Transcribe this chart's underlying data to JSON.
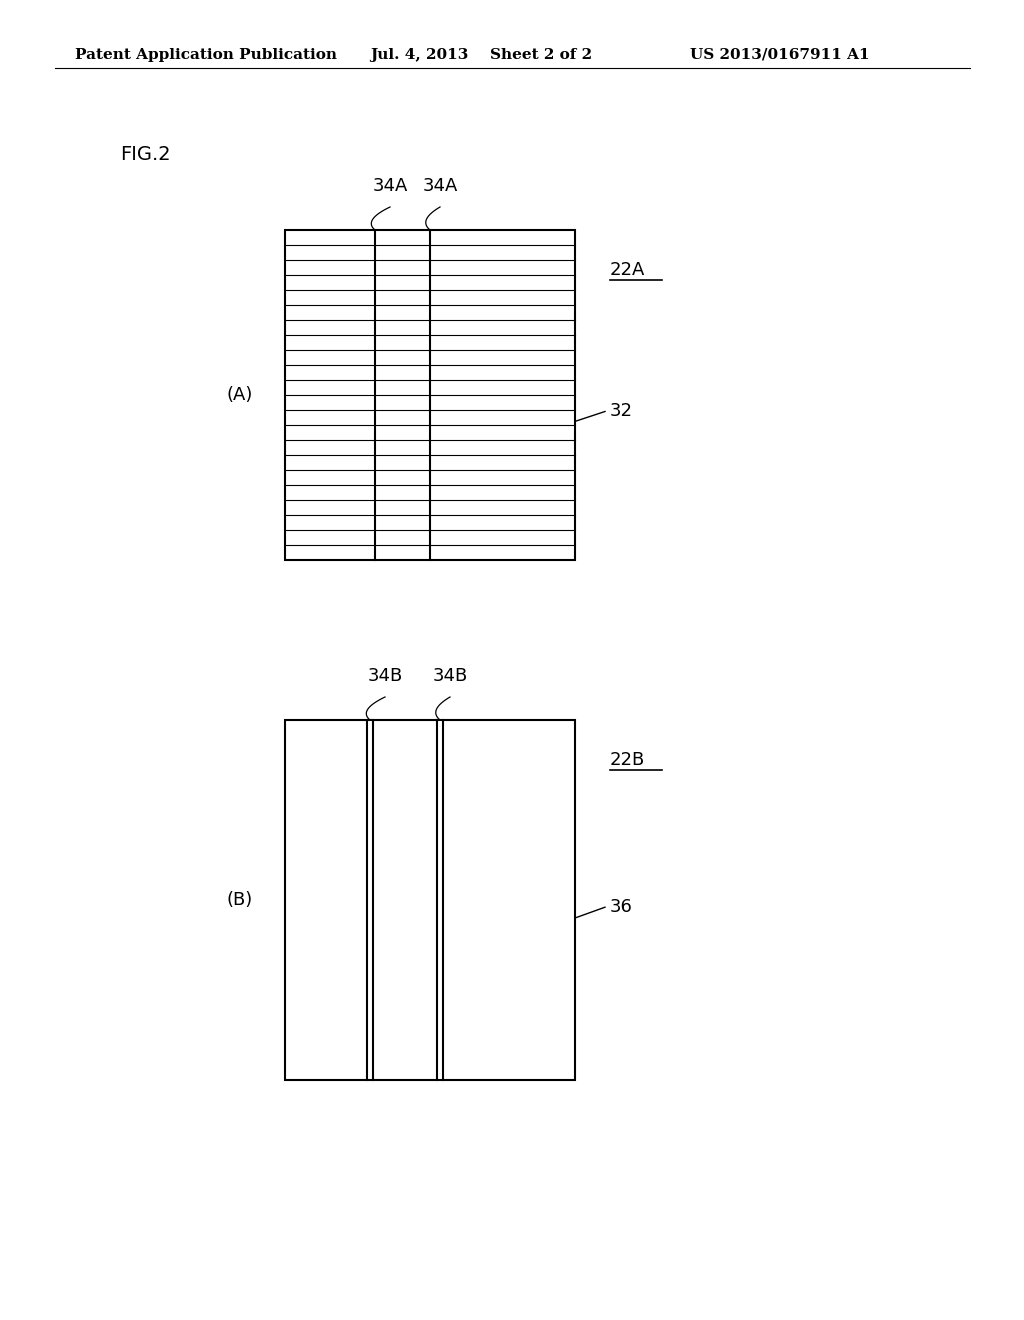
{
  "bg_color": "#ffffff",
  "header_text": "Patent Application Publication",
  "header_date": "Jul. 4, 2013",
  "header_sheet": "Sheet 2 of 2",
  "header_patent": "US 2013/0167911 A1",
  "fig_label": "FIG.2",
  "panel_A_label": "(A)",
  "panel_B_label": "(B)",
  "label_22A": "22A",
  "label_22B": "22B",
  "label_32": "32",
  "label_36": "36",
  "label_34A_1": "34A",
  "label_34A_2": "34A",
  "label_34B_1": "34B",
  "label_34B_2": "34B",
  "line_color": "#000000",
  "num_hlines": 22
}
